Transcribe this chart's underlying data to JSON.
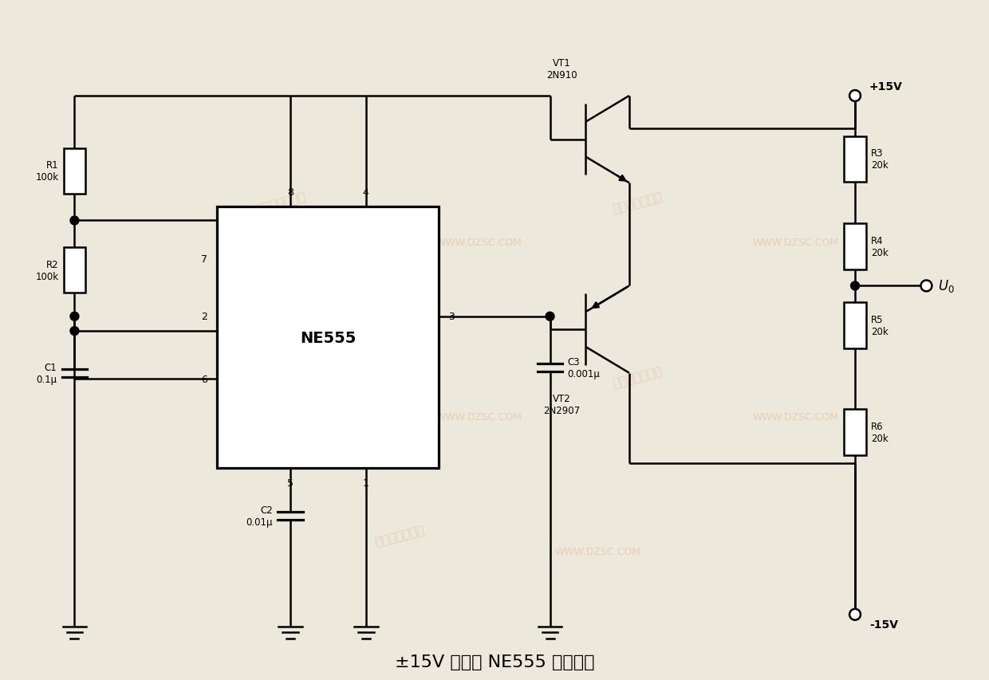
{
  "title": "±15V 电源的 NE555 定时电路",
  "title_fontsize": 16,
  "bg_color": "#ede8dc",
  "line_color": "#000000",
  "line_width": 1.8,
  "NE555_label": "NE555",
  "pin_labels": {
    "p1": "1",
    "p2": "2",
    "p3": "3",
    "p4": "4",
    "p5": "5",
    "p6": "6",
    "p7": "7",
    "p8": "8"
  },
  "R1_label": "R1\n100k",
  "R2_label": "R2\n100k",
  "C1_label": "C1\n0.1μ",
  "C2_label": "C2\n0.01μ",
  "C3_label": "C3\n0.001μ",
  "R3_label": "R3\n20k",
  "R4_label": "R4\n20k",
  "R5_label": "R5\n20k",
  "R6_label": "R6\n20k",
  "VT1_label": "VT1\n2N910",
  "VT2_label": "VT2\n2N2907",
  "Vpos_label": "+15V",
  "Vneg_label": "-15V",
  "Uo_label": "U₀",
  "wm_texts": [
    "维库",
    "电子市场网",
    "WWW.DZSC.COM"
  ],
  "wm_color": "#e8b896"
}
